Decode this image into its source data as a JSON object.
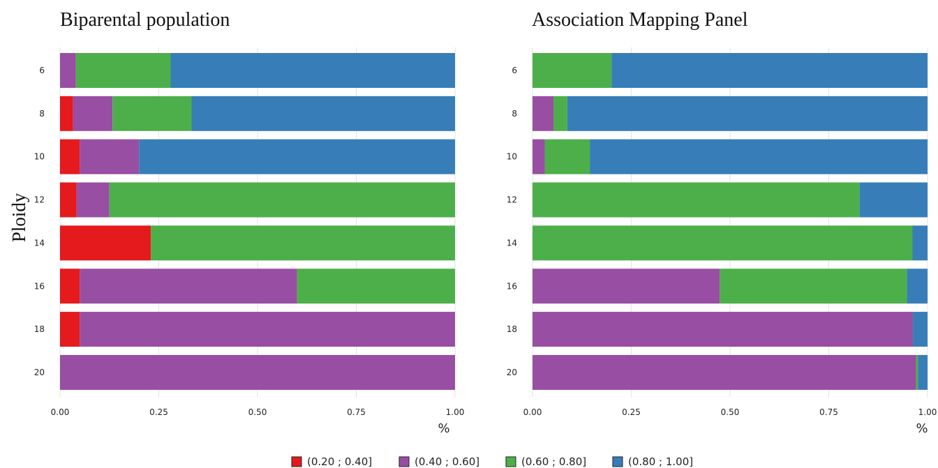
{
  "chart_data": {
    "type": "bar",
    "orientation": "horizontal",
    "stacked": true,
    "ylabel": "Ploidy",
    "xlabel": "%",
    "xlim": [
      0,
      1
    ],
    "xticks": [
      "0.00",
      "0.25",
      "0.50",
      "0.75",
      "1.00"
    ],
    "grid": true,
    "legend_position": "bottom",
    "legend": [
      {
        "label": "(0.20 ; 0.40]",
        "color": "#e41a1c"
      },
      {
        "label": "(0.40 ; 0.60]",
        "color": "#984ea3"
      },
      {
        "label": "(0.60 ; 0.80]",
        "color": "#4daf4a"
      },
      {
        "label": "(0.80 ; 1.00]",
        "color": "#377eb8"
      }
    ],
    "panels": [
      {
        "title": "Biparental population",
        "categories": [
          "6",
          "8",
          "10",
          "12",
          "14",
          "16",
          "18",
          "20"
        ],
        "series": [
          {
            "name": "(0.20 ; 0.40]",
            "values": [
              0.0,
              0.033,
              0.05,
              0.042,
              0.23,
              0.05,
              0.05,
              0.0
            ]
          },
          {
            "name": "(0.40 ; 0.60]",
            "values": [
              0.04,
              0.1,
              0.15,
              0.083,
              0.0,
              0.55,
              0.95,
              1.0
            ]
          },
          {
            "name": "(0.60 ; 0.80]",
            "values": [
              0.24,
              0.2,
              0.0,
              0.875,
              0.77,
              0.4,
              0.0,
              0.0
            ]
          },
          {
            "name": "(0.80 ; 1.00]",
            "values": [
              0.72,
              0.667,
              0.8,
              0.0,
              0.0,
              0.0,
              0.0,
              0.0
            ]
          }
        ]
      },
      {
        "title": "Association Mapping Panel",
        "categories": [
          "6",
          "8",
          "10",
          "12",
          "14",
          "16",
          "18",
          "20"
        ],
        "series": [
          {
            "name": "(0.20 ; 0.40]",
            "values": [
              0,
              0,
              0,
              0,
              0,
              0,
              0,
              0
            ]
          },
          {
            "name": "(0.40 ; 0.60]",
            "values": [
              0.0,
              0.053,
              0.031,
              0.0,
              0.0,
              0.474,
              0.963,
              0.971
            ]
          },
          {
            "name": "(0.60 ; 0.80]",
            "values": [
              0.2,
              0.035,
              0.114,
              0.828,
              0.962,
              0.474,
              0.0,
              0.005
            ]
          },
          {
            "name": "(0.80 ; 1.00]",
            "values": [
              0.8,
              0.912,
              0.855,
              0.172,
              0.038,
              0.052,
              0.037,
              0.024
            ]
          }
        ]
      }
    ]
  }
}
